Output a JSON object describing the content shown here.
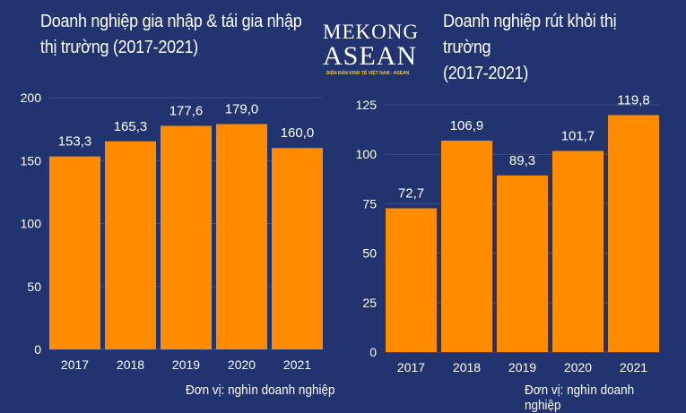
{
  "logo": {
    "line1": "MEKONG",
    "line2": "ASEAN",
    "tagline": "DIỄN ĐÀN KINH TẾ VIỆT NAM - ASEAN"
  },
  "colors": {
    "background": "#22346f",
    "bar": "#ff8c00",
    "grid": "#3e4f88"
  },
  "chart_data": [
    {
      "type": "bar",
      "title_line1": "Doanh nghiệp gia nhập & tái gia nhập",
      "title_line2": "thị trường (2017-2021)",
      "categories": [
        "2017",
        "2018",
        "2019",
        "2020",
        "2021"
      ],
      "values": [
        153.3,
        165.3,
        177.6,
        179.0,
        160.0
      ],
      "labels": [
        "153,3",
        "165,3",
        "177,6",
        "179,0",
        "160,0"
      ],
      "yticks": [
        "0",
        "50",
        "100",
        "150",
        "200"
      ],
      "ylim": [
        0,
        200
      ],
      "unit": "Đơn vị: nghìn doanh nghiệp"
    },
    {
      "type": "bar",
      "title_line1": "Doanh nghiệp rút khỏi thị trường",
      "title_line2": "(2017-2021)",
      "categories": [
        "2017",
        "2018",
        "2019",
        "2020",
        "2021"
      ],
      "values": [
        72.7,
        106.9,
        89.3,
        101.7,
        119.8
      ],
      "labels": [
        "72,7",
        "106,9",
        "89,3",
        "101,7",
        "119,8"
      ],
      "yticks": [
        "0",
        "25",
        "50",
        "75",
        "100",
        "125"
      ],
      "ylim": [
        0,
        125
      ],
      "unit": "Đơn vị: nghìn doanh nghiệp"
    }
  ]
}
